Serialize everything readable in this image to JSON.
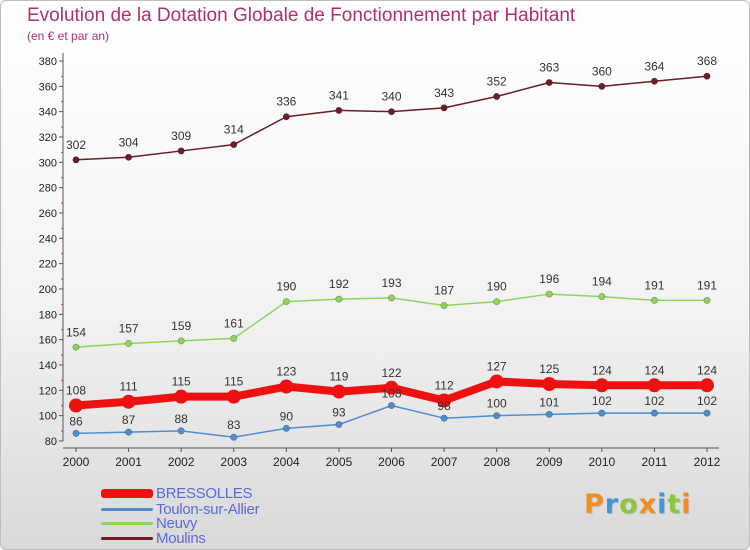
{
  "header": {
    "title": "Evolution de la Dotation Globale de Fonctionnement par Habitant",
    "subtitle": "(en € et par an)"
  },
  "brand": {
    "logo_text": "Proxiti",
    "letters": [
      {
        "ch": "P",
        "color": "#f28c1e"
      },
      {
        "ch": "r",
        "color": "#3a9ad9"
      },
      {
        "ch": "o",
        "color": "#8cc63f"
      },
      {
        "ch": "x",
        "color": "#f28c1e"
      },
      {
        "ch": "i",
        "color": "#3a9ad9"
      },
      {
        "ch": "t",
        "color": "#8cc63f"
      },
      {
        "ch": "i",
        "color": "#f28c1e"
      }
    ]
  },
  "chart_data": {
    "type": "line",
    "title": "Evolution de la Dotation Globale de Fonctionnement par Habitant",
    "subtitle": "(en € et par an)",
    "x": [
      "2000",
      "2001",
      "2002",
      "2003",
      "2004",
      "2005",
      "2006",
      "2007",
      "2008",
      "2009",
      "2010",
      "2011",
      "2012"
    ],
    "ylim": [
      80,
      380
    ],
    "yticks": [
      80,
      100,
      120,
      140,
      160,
      180,
      200,
      220,
      240,
      260,
      280,
      300,
      320,
      340,
      360,
      380
    ],
    "grid": false,
    "legend_position": "bottom-left",
    "series": [
      {
        "name": "Moulins",
        "color": "#6b1c24",
        "values": [
          302,
          304,
          309,
          314,
          336,
          341,
          340,
          343,
          352,
          363,
          360,
          364,
          368
        ]
      },
      {
        "name": "Neuvy",
        "color": "#8fd45a",
        "values": [
          154,
          157,
          159,
          161,
          190,
          192,
          193,
          187,
          190,
          196,
          194,
          191,
          191
        ]
      },
      {
        "name": "Toulon-sur-Allier",
        "color": "#4e8ed0",
        "values": [
          86,
          87,
          88,
          83,
          90,
          93,
          108,
          98,
          100,
          101,
          102,
          102,
          102
        ]
      },
      {
        "name": "BRESSOLLES",
        "color": "#ee1111",
        "values": [
          108,
          111,
          115,
          115,
          123,
          119,
          122,
          112,
          127,
          125,
          124,
          124,
          124
        ]
      }
    ]
  },
  "legend": [
    {
      "name": "BRESSOLLES",
      "color": "#ee1111"
    },
    {
      "name": "Toulon-sur-Allier",
      "color": "#4e8ed0"
    },
    {
      "name": "Neuvy",
      "color": "#8fd45a"
    },
    {
      "name": "Moulins",
      "color": "#6b1c24"
    }
  ]
}
